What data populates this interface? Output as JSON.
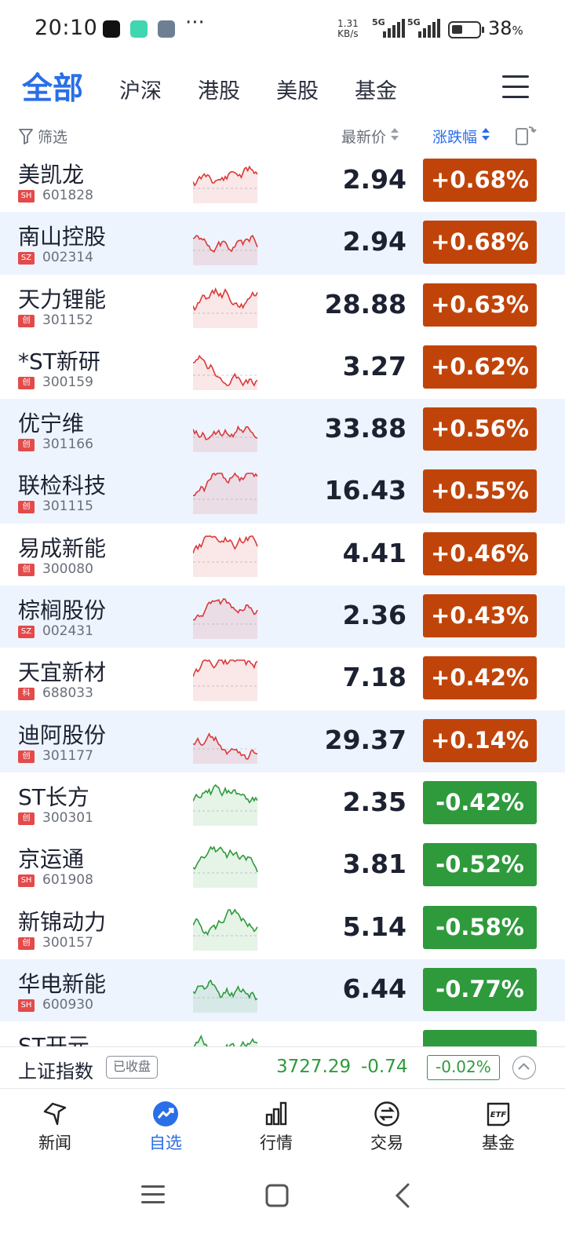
{
  "status_bar": {
    "time": "20:10",
    "more": "···",
    "net_speed_value": "1.31",
    "net_speed_unit": "KB/s",
    "signal_1": "5G",
    "signal_2": "5G",
    "battery_level": 0.38,
    "battery_pct": "38",
    "battery_unit": "%"
  },
  "market_tabs": [
    "全部",
    "沪深",
    "港股",
    "美股",
    "基金"
  ],
  "active_tab_index": 0,
  "list_header": {
    "filter_label": "筛选",
    "price_label": "最新价",
    "change_label": "涨跌幅"
  },
  "stocks": [
    {
      "name": "美凯龙",
      "board": "SH",
      "code": "601828",
      "price": "2.94",
      "change": "+0.68%",
      "direction": "up"
    },
    {
      "name": "南山控股",
      "board": "SZ",
      "code": "002314",
      "price": "2.94",
      "change": "+0.68%",
      "direction": "up"
    },
    {
      "name": "天力锂能",
      "board": "创",
      "code": "301152",
      "price": "28.88",
      "change": "+0.63%",
      "direction": "up"
    },
    {
      "name": "*ST新研",
      "board": "创",
      "code": "300159",
      "price": "3.27",
      "change": "+0.62%",
      "direction": "up"
    },
    {
      "name": "优宁维",
      "board": "创",
      "code": "301166",
      "price": "33.88",
      "change": "+0.56%",
      "direction": "up"
    },
    {
      "name": "联检科技",
      "board": "创",
      "code": "301115",
      "price": "16.43",
      "change": "+0.55%",
      "direction": "up"
    },
    {
      "name": "易成新能",
      "board": "创",
      "code": "300080",
      "price": "4.41",
      "change": "+0.46%",
      "direction": "up"
    },
    {
      "name": "棕榈股份",
      "board": "SZ",
      "code": "002431",
      "price": "2.36",
      "change": "+0.43%",
      "direction": "up"
    },
    {
      "name": "天宜新材",
      "board": "科",
      "code": "688033",
      "price": "7.18",
      "change": "+0.42%",
      "direction": "up"
    },
    {
      "name": "迪阿股份",
      "board": "创",
      "code": "301177",
      "price": "29.37",
      "change": "+0.14%",
      "direction": "up"
    },
    {
      "name": "ST长方",
      "board": "创",
      "code": "300301",
      "price": "2.35",
      "change": "-0.42%",
      "direction": "down"
    },
    {
      "name": "京运通",
      "board": "SH",
      "code": "601908",
      "price": "3.81",
      "change": "-0.52%",
      "direction": "down"
    },
    {
      "name": "新锦动力",
      "board": "创",
      "code": "300157",
      "price": "5.14",
      "change": "-0.58%",
      "direction": "down"
    },
    {
      "name": "华电新能",
      "board": "SH",
      "code": "600930",
      "price": "6.44",
      "change": "-0.77%",
      "direction": "down"
    },
    {
      "name": "ST开元",
      "board": "",
      "code": "",
      "price": "",
      "change": "",
      "direction": "down"
    }
  ],
  "index_bar": {
    "name": "上证指数",
    "status": "已收盘",
    "value": "3727.29",
    "change": "-0.74",
    "change_pct": "-0.02%"
  },
  "bottom_nav": [
    {
      "label": "新闻",
      "icon": "news-icon"
    },
    {
      "label": "自选",
      "icon": "watchlist-icon"
    },
    {
      "label": "行情",
      "icon": "market-icon"
    },
    {
      "label": "交易",
      "icon": "trade-icon"
    },
    {
      "label": "基金",
      "icon": "etf-icon"
    }
  ],
  "active_nav_index": 1,
  "colors": {
    "accent_blue": "#2a6ee8",
    "up_red": "#c0440a",
    "down_green": "#2e9a3c",
    "alt_row_bg": "#eef4fe"
  }
}
